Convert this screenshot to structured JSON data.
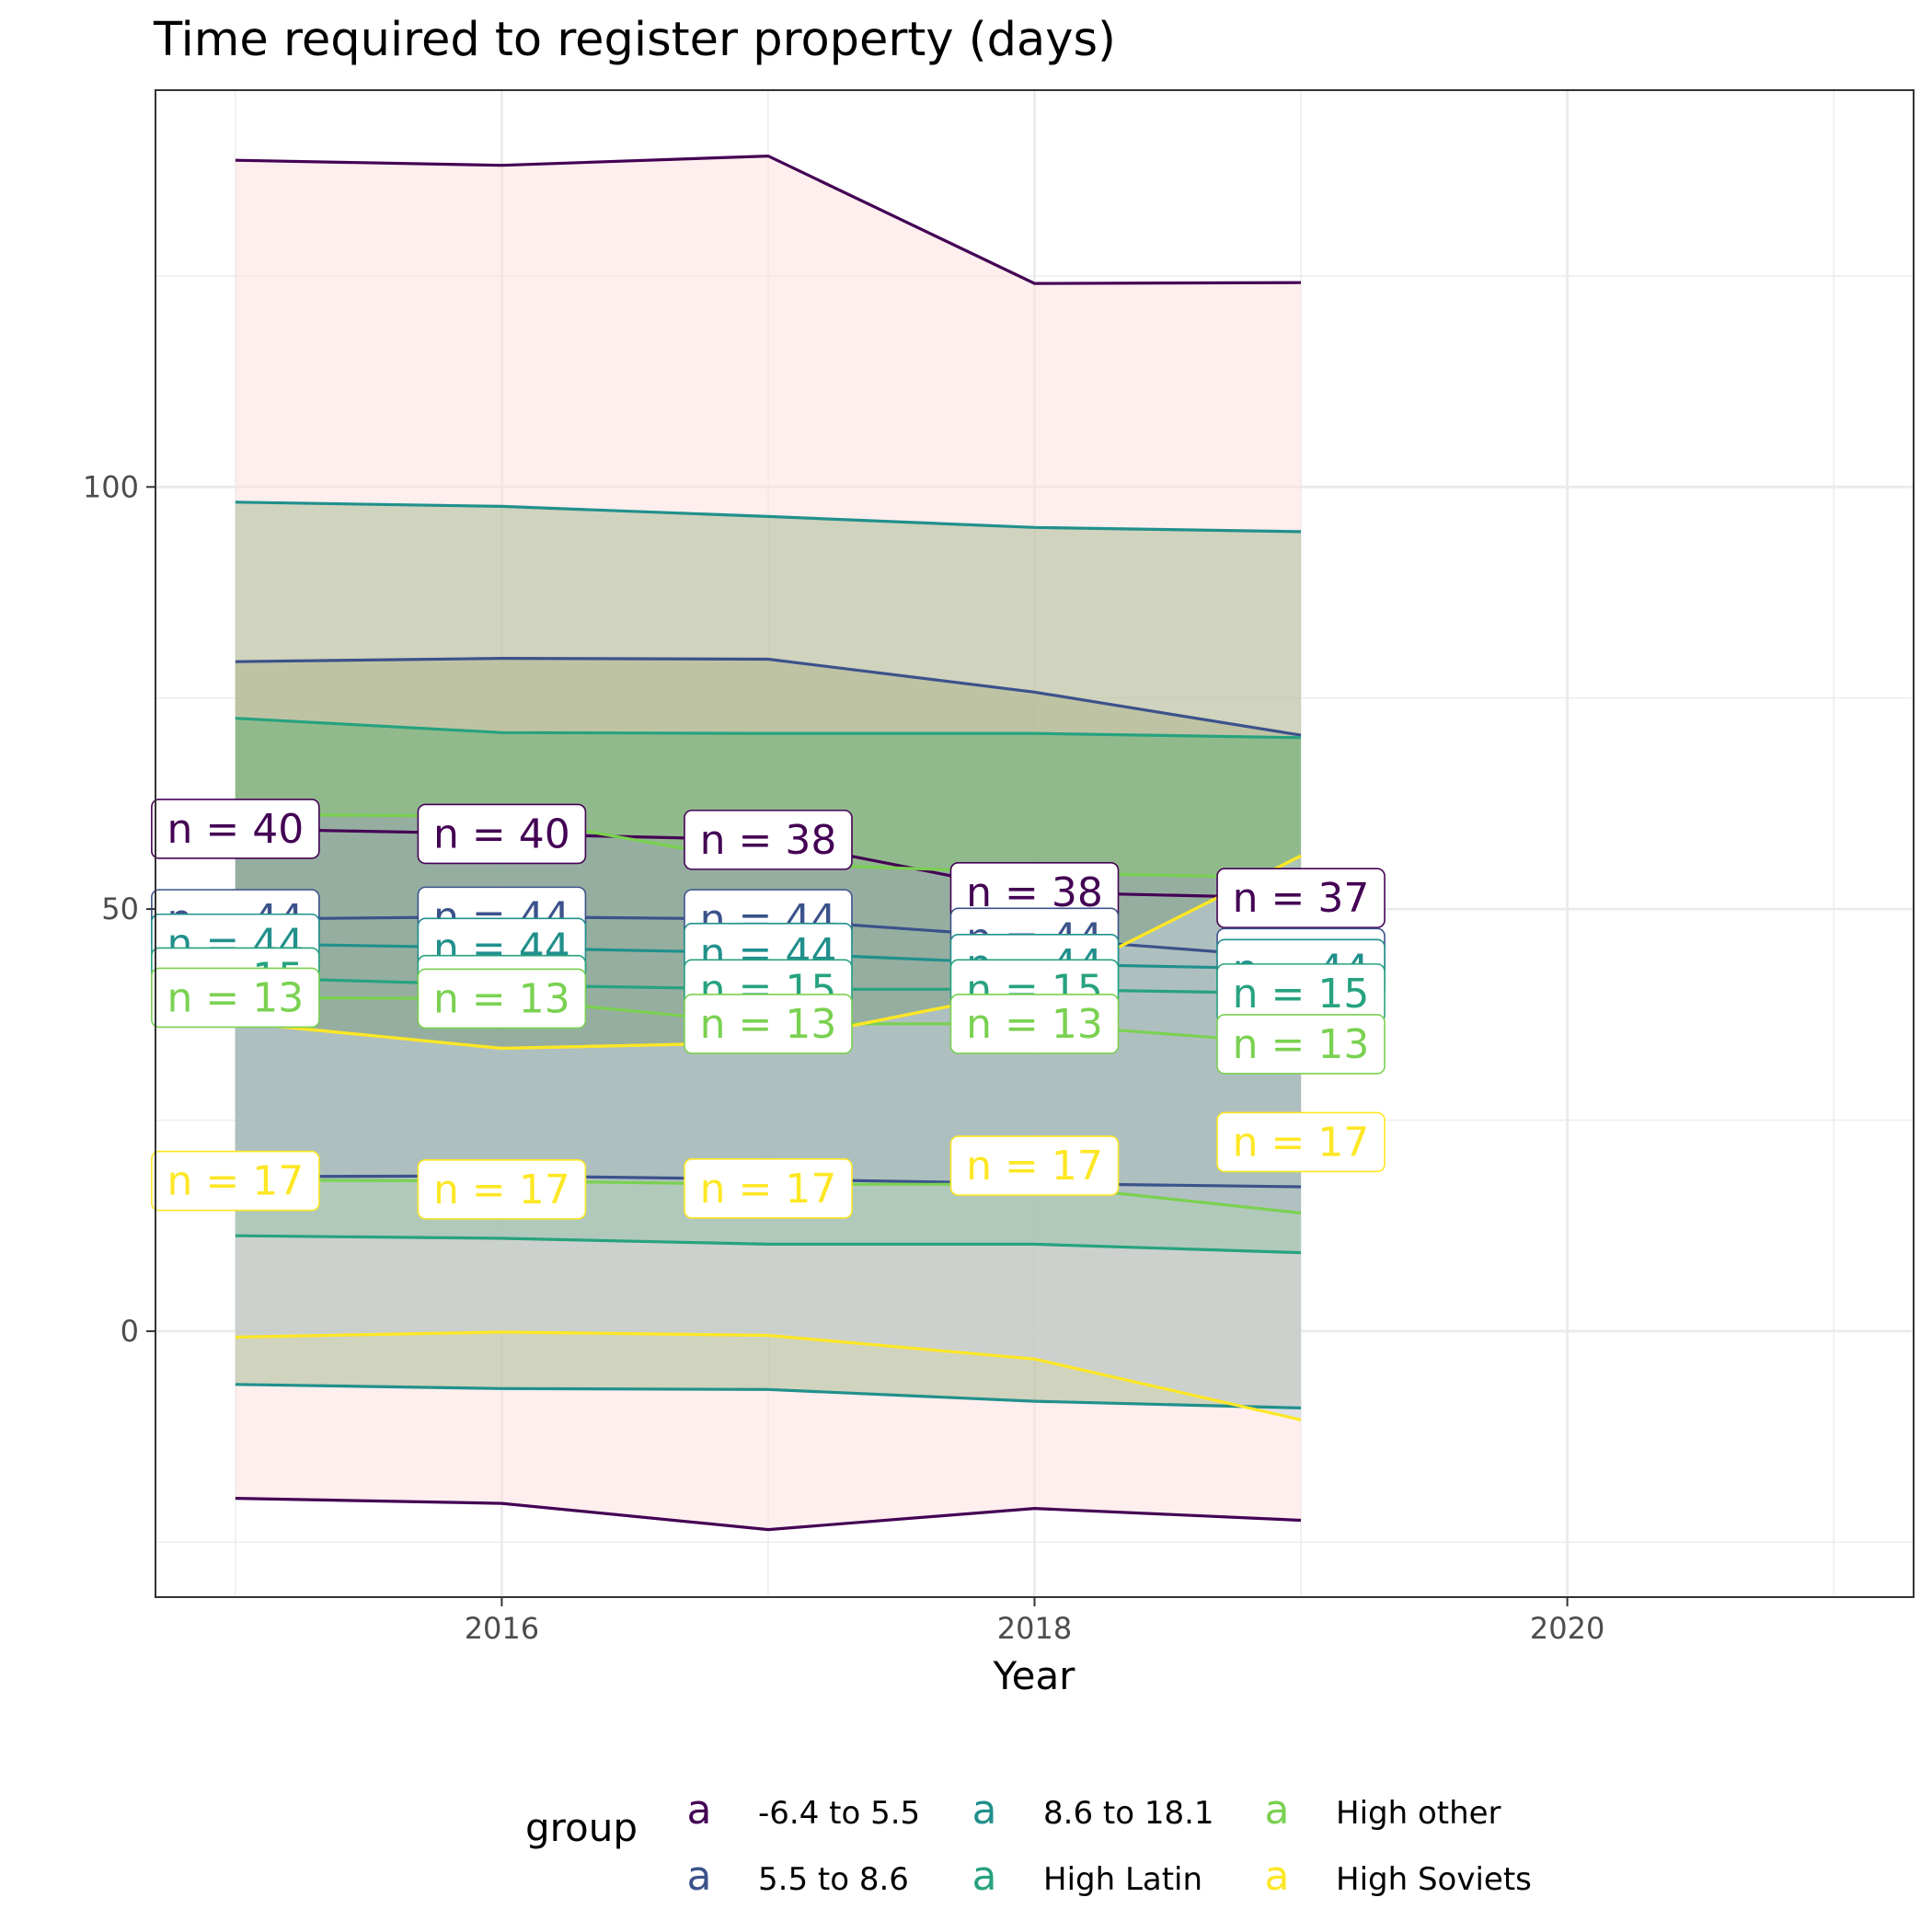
{
  "chart_data": {
    "type": "line",
    "title": "Time required to register property (days)",
    "xlabel": "Year",
    "ylabel": "",
    "xlim": [
      2014.7,
      2021.3
    ],
    "ylim": [
      -31.5,
      147
    ],
    "x_ticks": [
      2016,
      2018,
      2020
    ],
    "y_ticks": [
      0,
      50,
      100
    ],
    "grid": true,
    "legend": {
      "title": "group",
      "position": "bottom",
      "key_glyph": "a",
      "entries": [
        "-6.4 to 5.5",
        "8.6 to 18.1",
        "High other",
        "5.5 to 8.6",
        "High Latin",
        "High Soviets"
      ]
    },
    "x": [
      2015,
      2016,
      2017,
      2018,
      2019
    ],
    "series": [
      {
        "name": "-6.4 to 5.5",
        "color": "#440154",
        "fill": "#fde0de",
        "mean": [
          59.5,
          58.9,
          58.2,
          52.0,
          51.3
        ],
        "upper": [
          138.7,
          138.1,
          139.2,
          124.1,
          124.2
        ],
        "lower": [
          -19.8,
          -20.4,
          -23.5,
          -21.0,
          -22.4
        ],
        "n": [
          "n = 40",
          "n = 40",
          "n = 38",
          "n = 38",
          "n = 37"
        ]
      },
      {
        "name": "5.5 to 8.6",
        "color": "#3b528b",
        "fill": "#b5b08a",
        "mean": [
          48.8,
          49.1,
          48.8,
          46.6,
          44.2
        ],
        "upper": [
          79.3,
          79.7,
          79.6,
          75.7,
          70.6
        ],
        "lower": [
          18.3,
          18.4,
          18.0,
          17.5,
          17.1
        ],
        "n": [
          "n = 44",
          "n = 44",
          "n = 44",
          "n = 44",
          "n = 44"
        ]
      },
      {
        "name": "8.6 to 18.1",
        "color": "#21908c",
        "fill": "#a2b78c",
        "mean": [
          45.9,
          45.4,
          44.8,
          43.5,
          42.9
        ],
        "upper": [
          98.2,
          97.7,
          96.5,
          95.2,
          94.7
        ],
        "lower": [
          -6.3,
          -6.8,
          -6.9,
          -8.3,
          -9.1
        ],
        "n": [
          "n = 44",
          "n = 44",
          "n = 44",
          "n = 44",
          "n = 44"
        ]
      },
      {
        "name": "High Latin",
        "color": "#27a27f",
        "fill": "#63b174",
        "mean": [
          41.9,
          41.0,
          40.5,
          40.5,
          40.0
        ],
        "upper": [
          72.6,
          70.9,
          70.8,
          70.8,
          70.3
        ],
        "lower": [
          11.3,
          11.0,
          10.3,
          10.3,
          9.3
        ],
        "n": [
          "n = 15",
          "n = 15",
          "n = 15",
          "n = 15",
          "n = 15"
        ]
      },
      {
        "name": "High other",
        "color": "#7ad151",
        "fill": "#9aa2b4",
        "mean": [
          39.5,
          39.4,
          36.4,
          36.4,
          34.0
        ],
        "upper": [
          61.2,
          61.0,
          55.4,
          54.3,
          53.7
        ],
        "lower": [
          17.9,
          17.8,
          17.4,
          17.4,
          14.0
        ],
        "n": [
          "n = 13",
          "n = 13",
          "n = 13",
          "n = 13",
          "n = 13"
        ]
      },
      {
        "name": "High Soviets",
        "color": "#fde725",
        "fill": "#c8cfdd",
        "mean": [
          36.6,
          33.5,
          34.2,
          40.5,
          56.3
        ],
        "upper": [
          36.6,
          33.5,
          34.2,
          40.5,
          56.3
        ],
        "lower": [
          -0.7,
          -0.1,
          -0.5,
          -3.3,
          -10.5
        ],
        "n": [
          "n = 17",
          "n = 17",
          "n = 17",
          "n = 17",
          "n = 17"
        ],
        "n_pos": [
          17.8,
          16.8,
          16.9,
          19.6,
          22.4
        ]
      }
    ]
  }
}
